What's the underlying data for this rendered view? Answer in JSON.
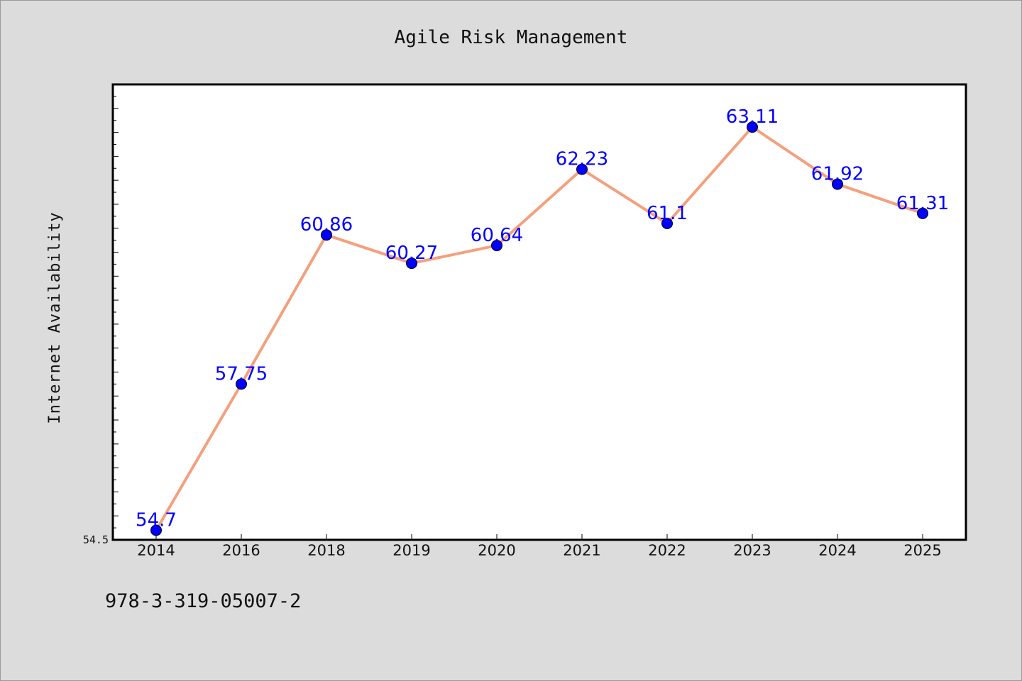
{
  "chart_data": {
    "type": "line",
    "title": "Agile Risk Management",
    "xlabel": "",
    "ylabel": "Internet Availability",
    "categories": [
      "2014",
      "2016",
      "2018",
      "2019",
      "2020",
      "2021",
      "2022",
      "2023",
      "2024",
      "2025"
    ],
    "series": [
      {
        "values": [
          54.7,
          57.75,
          60.86,
          60.27,
          60.64,
          62.23,
          61.1,
          63.11,
          61.92,
          61.31
        ],
        "labels": [
          "54.7",
          "57.75",
          "60.86",
          "60.27",
          "60.64",
          "62.23",
          "61.1",
          "63.11",
          "61.92",
          "61.31"
        ]
      }
    ],
    "ylim": [
      54.5,
      64.0
    ],
    "yticks": [
      "54.5"
    ],
    "grid": false,
    "legend": "none",
    "colors": {
      "line": "#f4a07e",
      "marker": "#0000ff",
      "label": "#0000ff",
      "plot_bg": "#ffffff",
      "page_bg": "#dcdcdc"
    }
  },
  "footer": {
    "isbn": "978-3-319-05007-2"
  }
}
